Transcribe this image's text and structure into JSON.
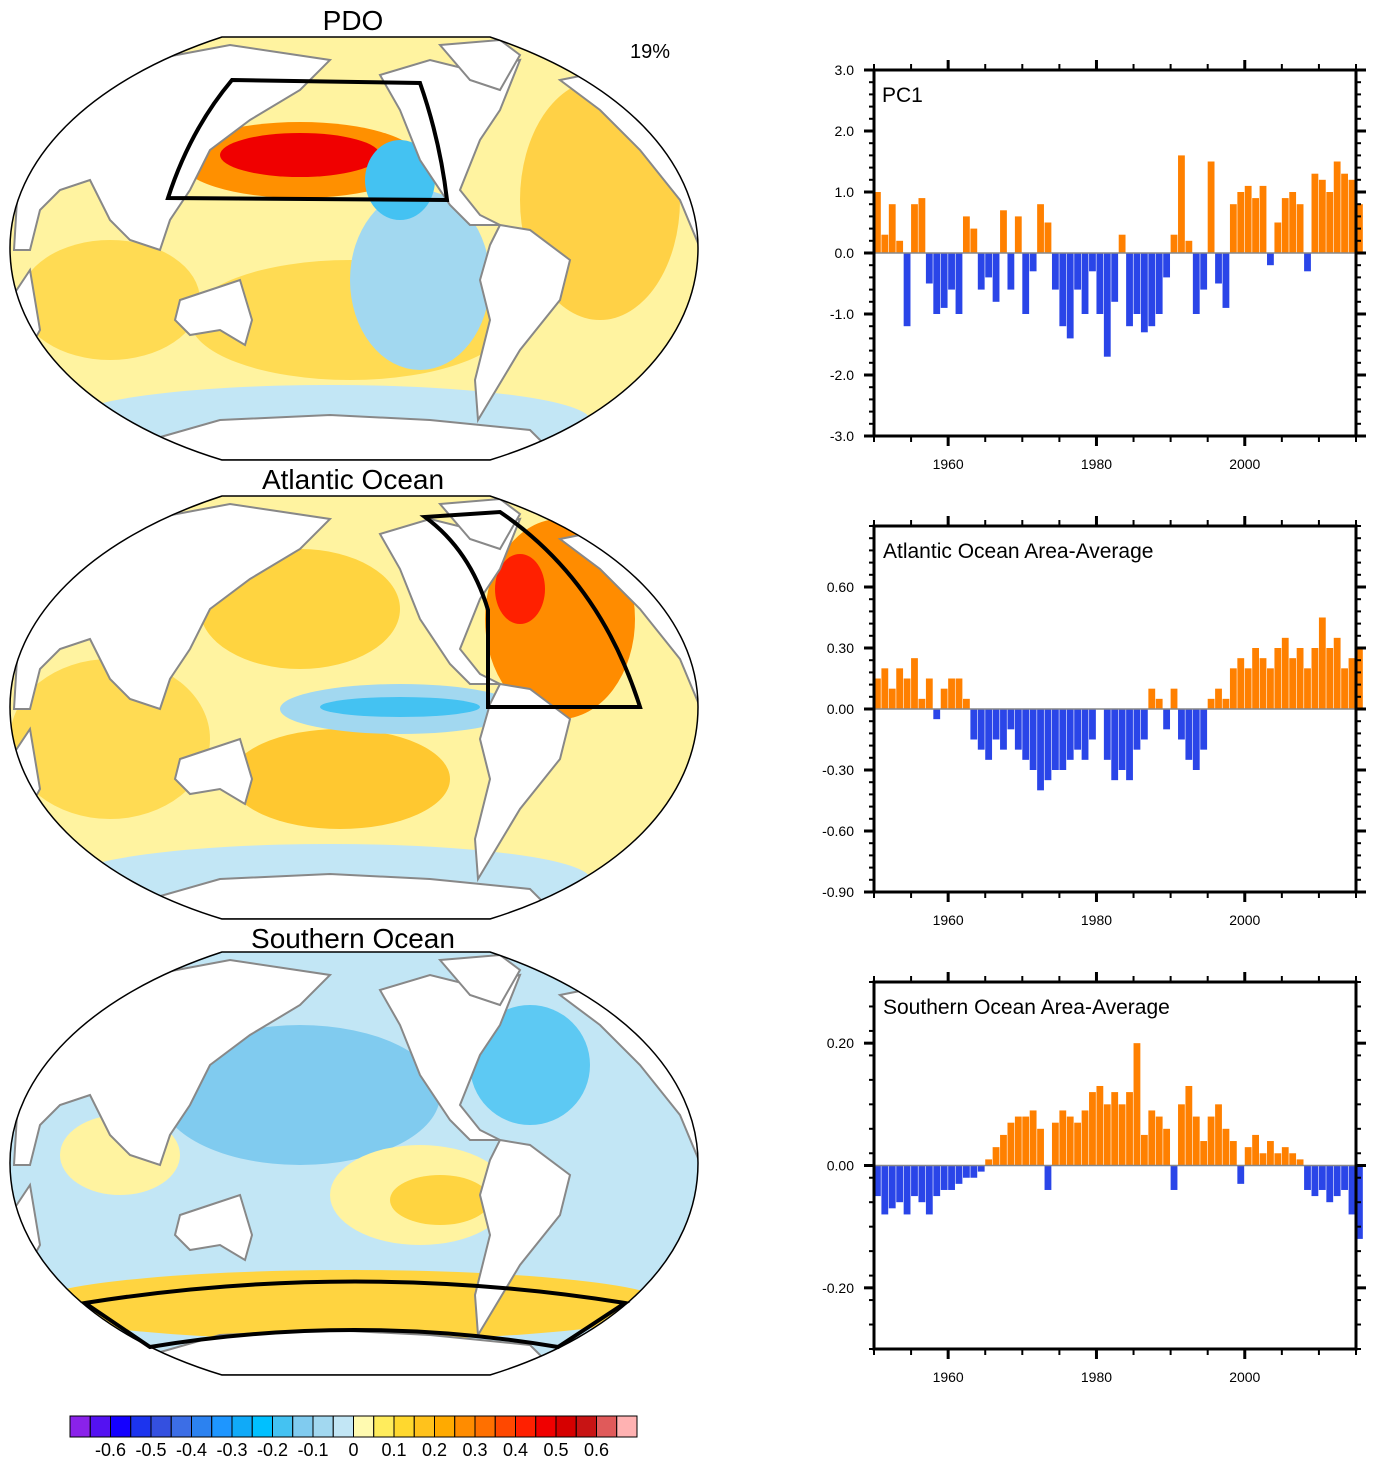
{
  "maps": [
    {
      "title": "PDO",
      "annotation": "19%"
    },
    {
      "title": "Atlantic Ocean"
    },
    {
      "title": "Southern Ocean"
    }
  ],
  "colorbar": {
    "labels": [
      "-0.6",
      "-0.5",
      "-0.4",
      "-0.3",
      "-0.2",
      "-0.1",
      "0",
      "0.1",
      "0.2",
      "0.3",
      "0.4",
      "0.5",
      "0.6"
    ],
    "colors": [
      "#8a22ea",
      "#5412f2",
      "#1400ff",
      "#1c34ee",
      "#3450e0",
      "#3c6ee6",
      "#2c82f0",
      "#1e96ff",
      "#10aaf8",
      "#00c0ff",
      "#44c2f2",
      "#80cbef",
      "#a2d8f0",
      "#c2e6f5",
      "#fffab0",
      "#ffec5c",
      "#ffd82e",
      "#ffc21c",
      "#ffaa00",
      "#ff8c00",
      "#ff7000",
      "#ff4800",
      "#ff2000",
      "#f00000",
      "#d60000",
      "#c81414",
      "#e05a5a",
      "#ffb2b2"
    ]
  },
  "colors": {
    "positive": "#ff8000",
    "negative": "#2a45e8",
    "zero_line": "#888888"
  },
  "chart_data": [
    {
      "type": "bar",
      "title": "PC1",
      "xlim": [
        1950,
        2015
      ],
      "xticks": [
        1960,
        1980,
        2000
      ],
      "ylim": [
        -3,
        3
      ],
      "yticks": [
        -3,
        -2,
        -1,
        0,
        1,
        2,
        3
      ],
      "ytick_labels": [
        "-3.0",
        "-2.0",
        "-1.0",
        "0.0",
        "1.0",
        "2.0",
        "3.0"
      ],
      "x_start": 1950,
      "values": [
        1.0,
        0.3,
        0.8,
        0.2,
        -1.2,
        0.8,
        0.9,
        -0.5,
        -1.0,
        -0.9,
        -0.6,
        -1.0,
        0.6,
        0.4,
        -0.6,
        -0.4,
        -0.8,
        0.7,
        -0.6,
        0.6,
        -1.0,
        -0.3,
        0.8,
        0.5,
        -0.6,
        -1.2,
        -1.4,
        -0.6,
        -1.0,
        -0.3,
        -1.0,
        -1.7,
        -0.8,
        0.3,
        -1.2,
        -1.0,
        -1.3,
        -1.2,
        -1.0,
        -0.4,
        0.3,
        1.6,
        0.2,
        -1.0,
        -0.6,
        1.5,
        -0.5,
        -0.9,
        0.8,
        1.0,
        1.1,
        0.9,
        1.1,
        -0.2,
        0.5,
        0.9,
        1.0,
        0.8,
        -0.3,
        1.3,
        1.2,
        1.0,
        1.5,
        1.3,
        1.2,
        0.8
      ]
    },
    {
      "type": "bar",
      "title": "Atlantic Ocean Area-Average",
      "xlim": [
        1950,
        2015
      ],
      "xticks": [
        1960,
        1980,
        2000
      ],
      "ylim": [
        -0.9,
        0.9
      ],
      "yticks": [
        -0.9,
        -0.6,
        -0.3,
        0,
        0.3,
        0.6
      ],
      "ytick_labels": [
        "-0.90",
        "-0.60",
        "-0.30",
        "0.00",
        "0.30",
        "0.60"
      ],
      "x_start": 1950,
      "values": [
        0.15,
        0.2,
        0.1,
        0.2,
        0.15,
        0.25,
        0.05,
        0.15,
        -0.05,
        0.1,
        0.15,
        0.15,
        0.05,
        -0.15,
        -0.2,
        -0.25,
        -0.15,
        -0.2,
        -0.1,
        -0.2,
        -0.25,
        -0.3,
        -0.4,
        -0.35,
        -0.3,
        -0.3,
        -0.25,
        -0.2,
        -0.25,
        -0.15,
        0.0,
        -0.25,
        -0.35,
        -0.3,
        -0.35,
        -0.2,
        -0.15,
        0.1,
        0.05,
        -0.1,
        0.1,
        -0.15,
        -0.25,
        -0.3,
        -0.2,
        0.05,
        0.1,
        0.05,
        0.2,
        0.25,
        0.2,
        0.3,
        0.25,
        0.2,
        0.3,
        0.35,
        0.25,
        0.3,
        0.2,
        0.3,
        0.45,
        0.3,
        0.35,
        0.2,
        0.25,
        0.3
      ]
    },
    {
      "type": "bar",
      "title": "Southern Ocean Area-Average",
      "xlim": [
        1950,
        2015
      ],
      "xticks": [
        1960,
        1980,
        2000
      ],
      "ylim": [
        -0.3,
        0.3
      ],
      "yticks": [
        -0.2,
        0,
        0.2
      ],
      "ytick_labels": [
        "-0.20",
        "0.00",
        "0.20"
      ],
      "x_start": 1950,
      "values": [
        -0.05,
        -0.08,
        -0.07,
        -0.06,
        -0.08,
        -0.05,
        -0.06,
        -0.08,
        -0.05,
        -0.04,
        -0.04,
        -0.03,
        -0.02,
        -0.02,
        -0.01,
        0.01,
        0.03,
        0.05,
        0.07,
        0.08,
        0.08,
        0.09,
        0.06,
        -0.04,
        0.07,
        0.09,
        0.08,
        0.07,
        0.09,
        0.12,
        0.13,
        0.1,
        0.12,
        0.1,
        0.12,
        0.2,
        0.05,
        0.09,
        0.08,
        0.06,
        -0.04,
        0.1,
        0.13,
        0.08,
        0.04,
        0.08,
        0.1,
        0.06,
        0.04,
        -0.03,
        0.03,
        0.05,
        0.02,
        0.04,
        0.02,
        0.03,
        0.02,
        0.01,
        -0.04,
        -0.05,
        -0.04,
        -0.06,
        -0.05,
        -0.04,
        -0.08,
        -0.12
      ]
    }
  ]
}
